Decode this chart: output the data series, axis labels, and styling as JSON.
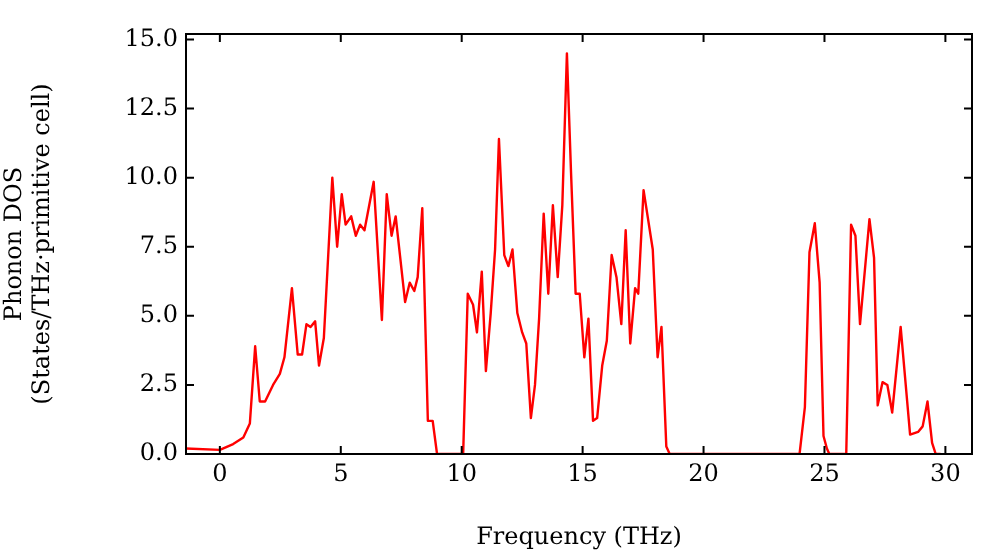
{
  "chart_data": {
    "type": "line",
    "xlabel": "Frequency (THz)",
    "ylabel": "Phonon DOS\n(States/THz·primitive cell)",
    "xlim": [
      -1.4,
      31.1
    ],
    "ylim": [
      0,
      15.2
    ],
    "xticks": [
      0,
      5,
      10,
      15,
      20,
      25,
      30
    ],
    "yticks": [
      {
        "value": 0,
        "label": "0.0"
      },
      {
        "value": 2.5,
        "label": "2.5"
      },
      {
        "value": 5,
        "label": "5.0"
      },
      {
        "value": 7.5,
        "label": "7.5"
      },
      {
        "value": 10,
        "label": "10.0"
      },
      {
        "value": 12.5,
        "label": "12.5"
      },
      {
        "value": 15,
        "label": "15.0"
      }
    ],
    "grid": false,
    "legend": false,
    "marker": "none",
    "line_style": "solid",
    "series": [
      {
        "color": "#ff0000",
        "x": [
          -1.4,
          0,
          0.55,
          0.97,
          1.24,
          1.46,
          1.65,
          1.87,
          2.2,
          2.48,
          2.67,
          2.98,
          3.22,
          3.4,
          3.58,
          3.75,
          3.94,
          4.1,
          4.3,
          4.65,
          4.85,
          5.04,
          5.2,
          5.43,
          5.62,
          5.8,
          5.98,
          6.36,
          6.7,
          6.9,
          7.1,
          7.27,
          7.66,
          7.85,
          8.04,
          8.18,
          8.37,
          8.6,
          8.8,
          8.98,
          10.06,
          10.25,
          10.47,
          10.63,
          10.83,
          11.0,
          11.2,
          11.38,
          11.54,
          11.76,
          11.93,
          12.1,
          12.3,
          12.5,
          12.67,
          12.86,
          13.03,
          13.2,
          13.39,
          13.58,
          13.77,
          13.97,
          14.16,
          14.35,
          14.52,
          14.71,
          14.88,
          15.07,
          15.24,
          15.43,
          15.6,
          15.81,
          16.0,
          16.2,
          16.4,
          16.6,
          16.78,
          16.97,
          17.17,
          17.3,
          17.52,
          17.9,
          18.1,
          18.26,
          18.46,
          18.6,
          23.97,
          24.19,
          24.38,
          24.6,
          24.8,
          24.96,
          25.1,
          25.2,
          25.9,
          26.1,
          26.28,
          26.47,
          26.86,
          27.05,
          27.2,
          27.4,
          27.6,
          27.8,
          28.15,
          28.3,
          28.54,
          28.87,
          29.06,
          29.26,
          29.45,
          29.6,
          29.8
        ],
        "values": [
          0.2,
          0.15,
          0.36,
          0.6,
          1.1,
          3.9,
          1.9,
          1.9,
          2.5,
          2.9,
          3.5,
          6.0,
          3.6,
          3.6,
          4.7,
          4.6,
          4.8,
          3.2,
          4.2,
          10.0,
          7.5,
          9.4,
          8.3,
          8.6,
          7.9,
          8.3,
          8.1,
          9.85,
          4.85,
          9.4,
          7.9,
          8.6,
          5.5,
          6.2,
          5.9,
          6.4,
          8.9,
          1.2,
          1.2,
          0,
          0,
          5.8,
          5.4,
          4.4,
          6.6,
          3.0,
          5.1,
          7.4,
          11.4,
          7.2,
          6.8,
          7.4,
          5.1,
          4.4,
          4.0,
          1.3,
          2.5,
          4.9,
          8.7,
          5.8,
          9.0,
          6.4,
          9.0,
          14.5,
          10.2,
          5.8,
          5.8,
          3.5,
          4.9,
          1.2,
          1.3,
          3.2,
          4.1,
          7.2,
          6.4,
          4.7,
          8.1,
          4.0,
          6.0,
          5.8,
          9.55,
          7.4,
          3.5,
          4.6,
          0.27,
          0,
          0,
          1.7,
          7.3,
          8.35,
          6.2,
          0.65,
          0.2,
          0,
          0,
          8.3,
          7.9,
          4.7,
          8.5,
          7.1,
          1.76,
          2.6,
          2.5,
          1.5,
          4.6,
          3.1,
          0.7,
          0.8,
          1.0,
          1.9,
          0.4,
          0,
          0
        ]
      }
    ]
  }
}
